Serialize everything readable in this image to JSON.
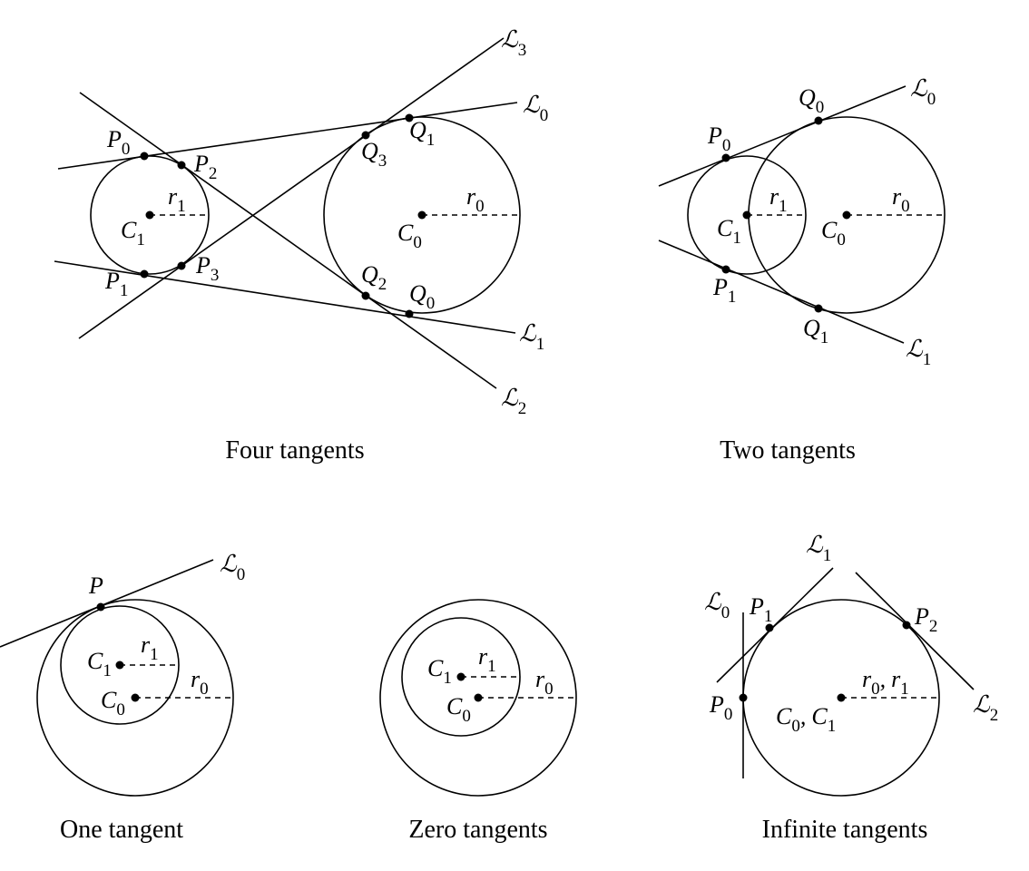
{
  "captions": {
    "four": "Four tangents",
    "two": "Two tangents",
    "one": "One tangent",
    "zero": "Zero tangents",
    "infinite": "Infinite tangents"
  },
  "symbols": {
    "L": "ℒ",
    "P": "P",
    "Q": "Q",
    "C": "C",
    "r": "r",
    "sub0": "0",
    "sub1": "1",
    "sub2": "2",
    "sub3": "3",
    "comma": ","
  }
}
